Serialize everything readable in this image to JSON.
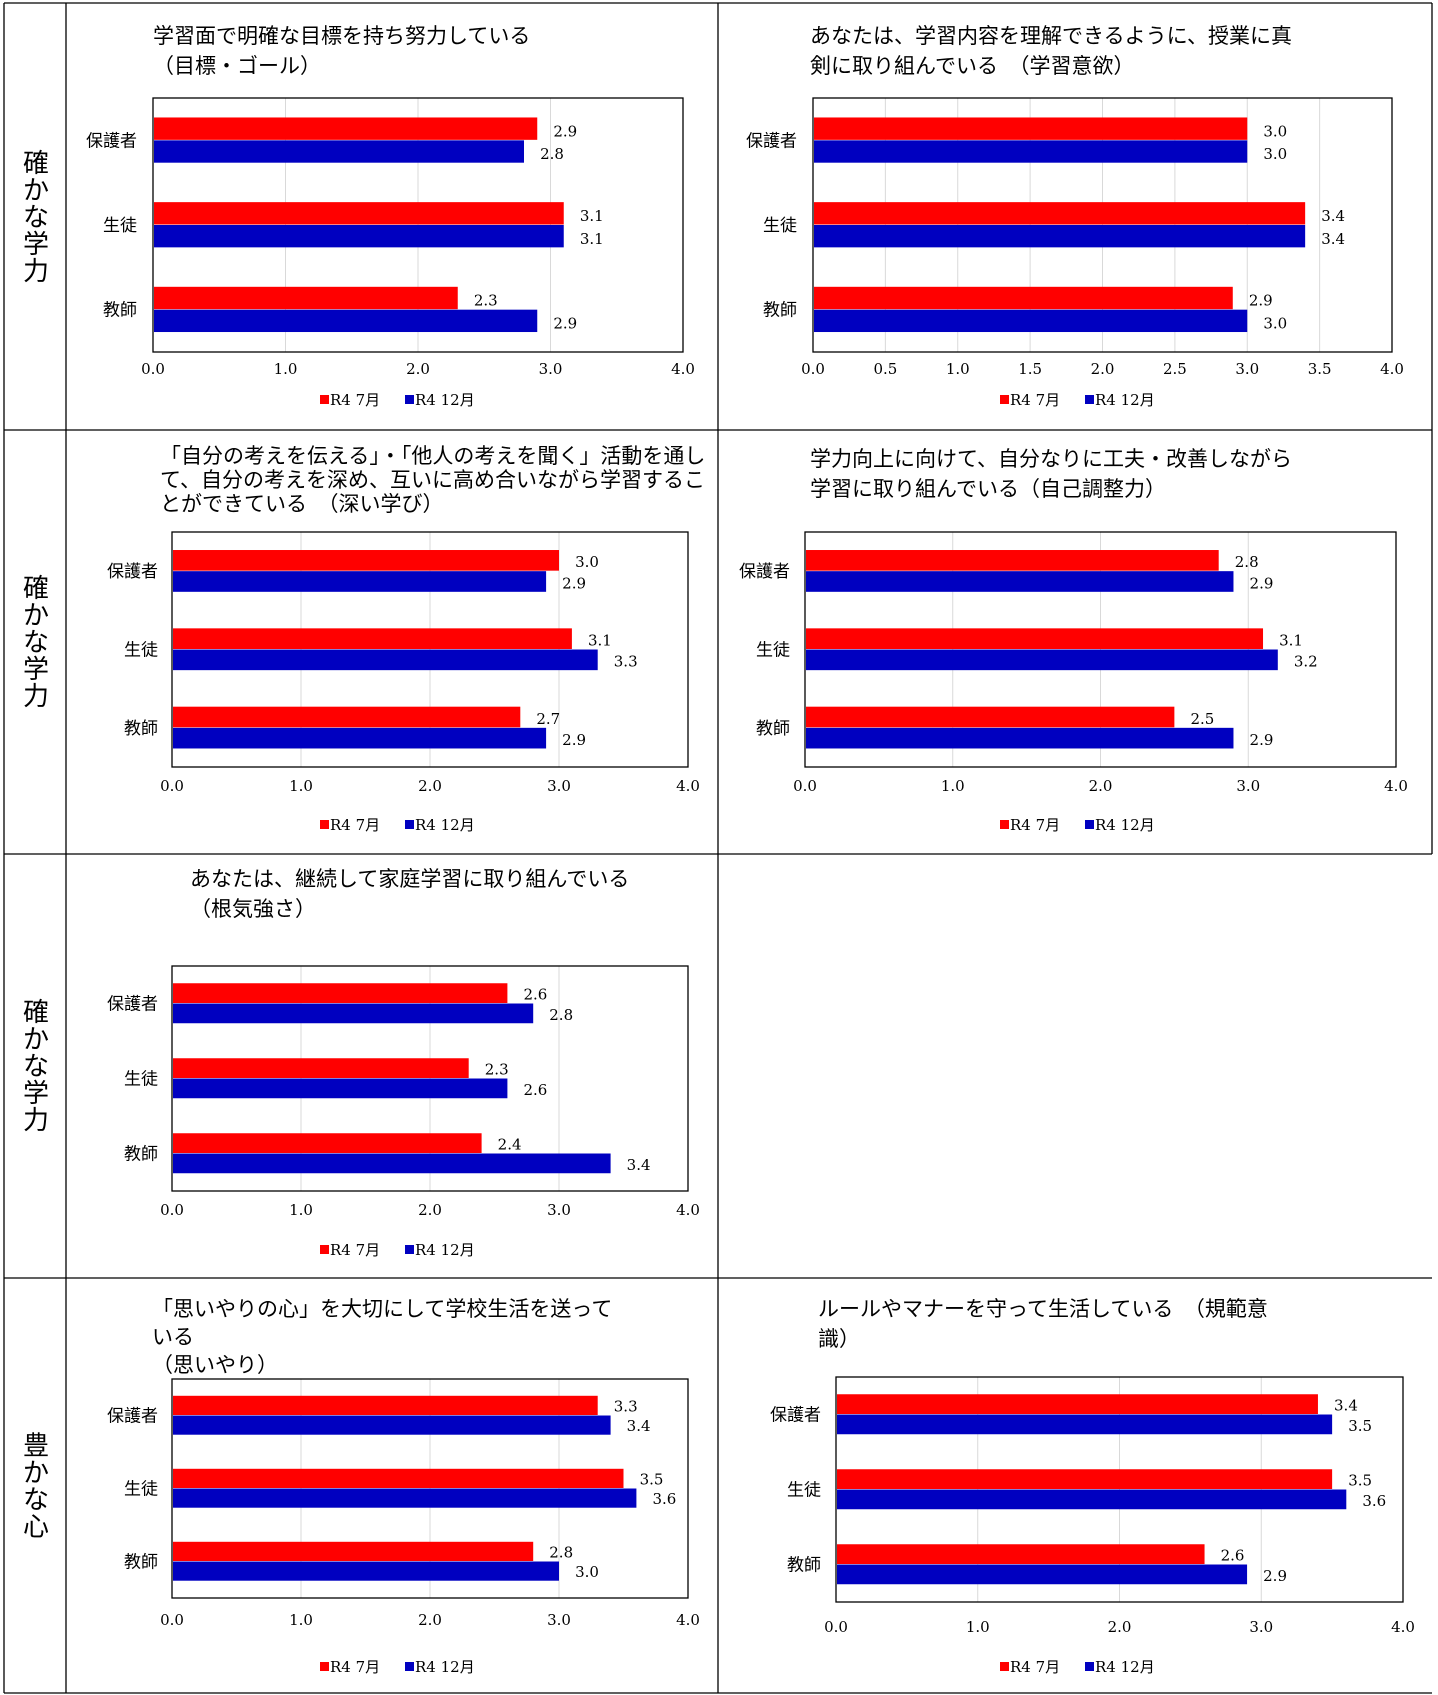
{
  "page": {
    "category_labels": [
      "確かな学力",
      "確かな学力",
      "確かな学力",
      "豊かな心"
    ]
  },
  "legend": {
    "series_1": "R4 7月",
    "series_2": "R4 12月"
  },
  "colors": {
    "series_1": "#ff0000",
    "series_2": "#0000c0",
    "grid": "#d9d9d9",
    "border": "#000000"
  },
  "chart_data": [
    {
      "type": "bar",
      "orientation": "horizontal",
      "title": [
        "学習面で明確な目標を持ち努力している",
        "（目標・ゴール）"
      ],
      "categories": [
        "保護者",
        "生徒",
        "教師"
      ],
      "series": [
        {
          "name": "R4 7月",
          "values": [
            2.9,
            3.1,
            2.3
          ]
        },
        {
          "name": "R4 12月",
          "values": [
            2.8,
            3.1,
            2.9
          ]
        }
      ],
      "xlim": [
        0,
        4
      ],
      "ticks": [
        "0.0",
        "1.0",
        "2.0",
        "3.0",
        "4.0"
      ],
      "legend_position": "bottom",
      "grid": true
    },
    {
      "type": "bar",
      "orientation": "horizontal",
      "title": [
        "あなたは、学習内容を理解できるように、授業に真",
        "剣に取り組んでいる　（学習意欲）"
      ],
      "categories": [
        "保護者",
        "生徒",
        "教師"
      ],
      "series": [
        {
          "name": "R4 7月",
          "values": [
            3.0,
            3.4,
            2.9
          ]
        },
        {
          "name": "R4 12月",
          "values": [
            3.0,
            3.4,
            3.0
          ]
        }
      ],
      "xlim": [
        0,
        4
      ],
      "ticks": [
        "0.0",
        "0.5",
        "1.0",
        "1.5",
        "2.0",
        "2.5",
        "3.0",
        "3.5",
        "4.0"
      ],
      "legend_position": "bottom",
      "grid": true
    },
    {
      "type": "bar",
      "orientation": "horizontal",
      "title": [
        "「自分の考えを伝える」・「他人の考えを聞く」活動を通し",
        "て、自分の考えを深め、互いに高め合いながら学習するこ",
        "とができている　（深い学び）"
      ],
      "categories": [
        "保護者",
        "生徒",
        "教師"
      ],
      "series": [
        {
          "name": "R4 7月",
          "values": [
            3.0,
            3.1,
            2.7
          ]
        },
        {
          "name": "R4 12月",
          "values": [
            2.9,
            3.3,
            2.9
          ]
        }
      ],
      "xlim": [
        0,
        4
      ],
      "ticks": [
        "0.0",
        "1.0",
        "2.0",
        "3.0",
        "4.0"
      ],
      "legend_position": "bottom",
      "grid": true
    },
    {
      "type": "bar",
      "orientation": "horizontal",
      "title": [
        "学力向上に向けて、自分なりに工夫・改善しながら",
        "学習に取り組んでいる（自己調整力）"
      ],
      "categories": [
        "保護者",
        "生徒",
        "教師"
      ],
      "series": [
        {
          "name": "R4 7月",
          "values": [
            2.8,
            3.1,
            2.5
          ]
        },
        {
          "name": "R4 12月",
          "values": [
            2.9,
            3.2,
            2.9
          ]
        }
      ],
      "xlim": [
        0,
        4
      ],
      "ticks": [
        "0.0",
        "1.0",
        "2.0",
        "3.0",
        "4.0"
      ],
      "legend_position": "bottom",
      "grid": true
    },
    {
      "type": "bar",
      "orientation": "horizontal",
      "title": [
        "あなたは、継続して家庭学習に取り組んでいる",
        "（根気強さ）"
      ],
      "categories": [
        "保護者",
        "生徒",
        "教師"
      ],
      "series": [
        {
          "name": "R4 7月",
          "values": [
            2.6,
            2.3,
            2.4
          ]
        },
        {
          "name": "R4 12月",
          "values": [
            2.8,
            2.6,
            3.4
          ]
        }
      ],
      "xlim": [
        0,
        4
      ],
      "ticks": [
        "0.0",
        "1.0",
        "2.0",
        "3.0",
        "4.0"
      ],
      "legend_position": "bottom",
      "grid": true
    },
    {
      "type": "bar",
      "orientation": "horizontal",
      "title": [
        "「思いやりの心」を大切にして学校生活を送って",
        "いる",
        "（思いやり）"
      ],
      "categories": [
        "保護者",
        "生徒",
        "教師"
      ],
      "series": [
        {
          "name": "R4 7月",
          "values": [
            3.3,
            3.5,
            2.8
          ]
        },
        {
          "name": "R4 12月",
          "values": [
            3.4,
            3.6,
            3.0
          ]
        }
      ],
      "xlim": [
        0,
        4
      ],
      "ticks": [
        "0.0",
        "1.0",
        "2.0",
        "3.0",
        "4.0"
      ],
      "legend_position": "bottom",
      "grid": true
    },
    {
      "type": "bar",
      "orientation": "horizontal",
      "title": [
        "ルールやマナーを守って生活している　（規範意",
        "識）"
      ],
      "categories": [
        "保護者",
        "生徒",
        "教師"
      ],
      "series": [
        {
          "name": "R4 7月",
          "values": [
            3.4,
            3.5,
            2.6
          ]
        },
        {
          "name": "R4 12月",
          "values": [
            3.5,
            3.6,
            2.9
          ]
        }
      ],
      "xlim": [
        0,
        4
      ],
      "ticks": [
        "0.0",
        "1.0",
        "2.0",
        "3.0",
        "4.0"
      ],
      "legend_position": "bottom",
      "grid": true
    }
  ]
}
